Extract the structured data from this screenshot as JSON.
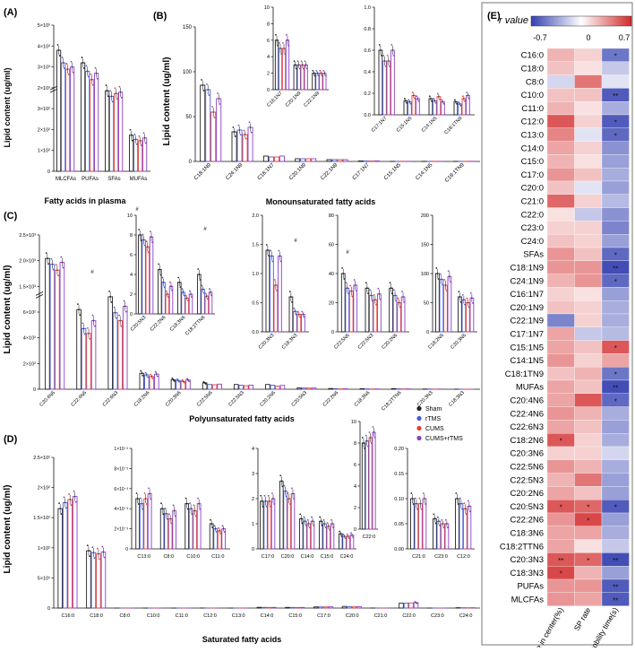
{
  "chart_data": [
    {
      "type": "bar",
      "panel": "(A)",
      "ylabel": "Lipid content (ug/ml)",
      "xlabel": "Fatty acids in plasma",
      "categories": [
        "MLCFAs",
        "PUFAs",
        "SFAs",
        "MUFAs"
      ],
      "groups": [
        "Sham",
        "rTMS",
        "CUMS",
        "CUMS+rTMS"
      ],
      "ytick_labels": [
        "0",
        "1×10²",
        "2×10²",
        "3×10²",
        "2×10³",
        "3×10³",
        "4×10³",
        "5×10³"
      ],
      "values": [
        [
          3800,
          3200,
          2900,
          3000
        ],
        [
          3200,
          2800,
          2400,
          2700
        ],
        [
          290,
          270,
          280,
          285
        ],
        [
          130,
          115,
          110,
          120
        ]
      ]
    },
    {
      "type": "bar",
      "panel": "(B)",
      "ylabel": "Lipid content (ug/ml)",
      "xlabel": "Monounsaturated fatty acids",
      "ylim": [
        0,
        150
      ],
      "ytick_labels": [
        "0",
        "50",
        "100",
        "150"
      ],
      "categories": [
        "C18:1N9",
        "C24:1N9",
        "C16:1N7",
        "C20:1N9",
        "C22:1N9",
        "C17:1N7",
        "C15:1N5",
        "C14:1N5",
        "C18:1TN9"
      ],
      "values": [
        [
          85,
          80,
          55,
          70
        ],
        [
          33,
          35,
          30,
          38
        ],
        [
          6,
          5,
          5,
          6
        ],
        [
          3,
          3,
          3,
          3
        ],
        [
          2,
          2,
          2,
          2
        ],
        [
          0.6,
          0.5,
          0.5,
          0.6
        ],
        [
          0.13,
          0.12,
          0.18,
          0.15
        ],
        [
          0.15,
          0.13,
          0.17,
          0.12
        ],
        [
          0.12,
          0.1,
          0.15,
          0.18
        ]
      ],
      "insets": [
        {
          "categories": [
            "C16:1N7",
            "C20:1N9",
            "C22:1N9"
          ],
          "ylim": [
            0,
            10
          ],
          "ytick_labels": [
            "0",
            "2",
            "4",
            "6",
            "8",
            "10"
          ]
        },
        {
          "categories": [
            "C17:1N7",
            "C15:1N5",
            "C14:1N5",
            "C18:1TN9"
          ],
          "ylim": [
            0,
            1
          ],
          "ytick_labels": [
            "0.0",
            "0.2",
            "0.4",
            "0.6",
            "0.8",
            "1.0"
          ]
        }
      ]
    },
    {
      "type": "bar",
      "panel": "(C)",
      "ylabel": "Lipid content (ug/ml)",
      "xlabel": "Polyunsaturated fatty acids",
      "ytick_labels": [
        "0",
        "2×10²",
        "4×10²",
        "6×10²",
        "1.5×10³",
        "2.0×10³",
        "2.5×10³"
      ],
      "categories": [
        "C20:4N6",
        "C22:4N6",
        "C22:6N3",
        "C18:2N6",
        "C20:3N6",
        "C22:5N6",
        "C22:5N3",
        "C20:2N6",
        "C20:5N3",
        "C22:2N6",
        "C18:3N6",
        "C18:2TTN6",
        "C20:3N3",
        "C18:3N3"
      ],
      "values": [
        [
          1900,
          1750,
          1600,
          1800
        ],
        [
          500,
          380,
          350,
          430
        ],
        [
          580,
          480,
          430,
          520
        ],
        [
          100,
          90,
          80,
          95
        ],
        [
          60,
          55,
          50,
          58
        ],
        [
          40,
          30,
          28,
          32
        ],
        [
          30,
          25,
          22,
          26
        ],
        [
          30,
          25,
          20,
          24
        ],
        [
          8,
          7.5,
          6.8,
          7.8
        ],
        [
          4.5,
          3.2,
          2,
          2.8
        ],
        [
          3.2,
          2.2,
          1.6,
          2
        ],
        [
          4,
          2.5,
          1.8,
          2.2
        ],
        [
          1.4,
          1.3,
          0.8,
          1.3
        ],
        [
          0.6,
          0.35,
          0.3,
          0.3
        ]
      ],
      "insets": [
        {
          "categories": [
            "C20:5N3",
            "C22:2N6",
            "C18:3N6",
            "C18:2TTN6"
          ],
          "ylim": [
            0,
            10
          ],
          "ytick_labels": [
            "0",
            "2",
            "4",
            "6",
            "8",
            "10"
          ]
        },
        {
          "categories": [
            "C20:3N3",
            "C18:3N3"
          ],
          "ylim": [
            0,
            2
          ],
          "ytick_labels": [
            "0.0",
            "0.5",
            "1.0",
            "1.5",
            "2.0"
          ]
        },
        {
          "categories": [
            "C22:5N6",
            "C22:5N3",
            "C20:2N6"
          ],
          "ylim": [
            0,
            80
          ],
          "ytick_labels": [
            "0",
            "20",
            "40",
            "60",
            "80"
          ]
        },
        {
          "categories": [
            "C18:2N6",
            "C20:3N6"
          ],
          "ylim": [
            0,
            200
          ],
          "ytick_labels": [
            "0",
            "50",
            "100",
            "150",
            "200"
          ]
        }
      ]
    },
    {
      "type": "bar",
      "panel": "(D)",
      "ylabel": "Lipid content (ug/ml)",
      "xlabel": "Saturated fatty acids",
      "ytick_labels": [
        "0",
        "5×10¹",
        "1×10²",
        "1.5×10²",
        "2×10²",
        "2.5×10²"
      ],
      "categories": [
        "C16:0",
        "C18:0",
        "C8:0",
        "C10:0",
        "C11:0",
        "C12:0",
        "C13:0",
        "C14:0",
        "C15:0",
        "C17:0",
        "C20:0",
        "C21:0",
        "C22:0",
        "C23:0",
        "C24:0"
      ],
      "values": [
        [
          165,
          175,
          180,
          185
        ],
        [
          95,
          92,
          90,
          93
        ],
        [
          0.004,
          0.0035,
          0.003,
          0.0038
        ],
        [
          0.0045,
          0.004,
          0.0038,
          0.0045
        ],
        [
          0.0025,
          0.002,
          0.0018,
          0.002
        ],
        [
          0.1,
          0.09,
          0.08,
          0.085
        ],
        [
          0.005,
          0.0045,
          0.005,
          0.0055
        ],
        [
          1.2,
          1.1,
          1,
          1.1
        ],
        [
          1.1,
          1,
          0.9,
          1
        ],
        [
          1.9,
          1.9,
          1.9,
          2
        ],
        [
          2.7,
          2.3,
          2,
          2.2
        ],
        [
          0.1,
          0.09,
          0.09,
          0.1
        ],
        [
          8,
          8.2,
          8.5,
          9
        ],
        [
          0.06,
          0.055,
          0.05,
          0.05
        ],
        [
          0.6,
          0.5,
          0.5,
          0.55
        ]
      ],
      "insets": [
        {
          "categories": [
            "C13:0",
            "C8:0",
            "C10:0",
            "C11:0"
          ],
          "ytick_labels": [
            "0",
            "2×10⁻³",
            "4×10⁻³",
            "6×10⁻³",
            "8×10⁻³",
            "1×10⁻²"
          ]
        },
        {
          "categories": [
            "C17:0",
            "C20:0",
            "C14:0",
            "C15:0",
            "C24:0"
          ],
          "ylim": [
            0,
            4
          ],
          "ytick_labels": [
            "0",
            "1",
            "2",
            "3",
            "4"
          ]
        },
        {
          "categories": [
            "C22:0"
          ],
          "ylim": [
            0,
            10
          ],
          "ytick_labels": [
            "0",
            "2",
            "4",
            "6",
            "8",
            "10"
          ]
        },
        {
          "categories": [
            "C21:0",
            "C23:0",
            "C12:0"
          ],
          "ylim": [
            0,
            0.2
          ],
          "ytick_labels": [
            "0.00",
            "0.05",
            "0.10",
            "0.15",
            "0.20"
          ]
        }
      ]
    },
    {
      "type": "heatmap",
      "panel": "(E)",
      "legend_title": "r value",
      "scale_labels": [
        "-0.7",
        "0",
        "0.7"
      ],
      "columns": [
        "Distance in center(%)",
        "SP rate",
        "Immobility time(s)"
      ],
      "rows": [
        "C16:0",
        "C18:0",
        "C8:0",
        "C10:0",
        "C11:0",
        "C12:0",
        "C13:0",
        "C14:0",
        "C15:0",
        "C17:0",
        "C20:0",
        "C21:0",
        "C22:0",
        "C23:0",
        "C24:0",
        "SFAs",
        "C18:1N9",
        "C24:1N9",
        "C16:1N7",
        "C20:1N9",
        "C22:1N9",
        "C17:1N7",
        "C15:1N5",
        "C14:1N5",
        "C18:1TN9",
        "MUFAs",
        "C20:4N6",
        "C22:4N6",
        "C22:6N3",
        "C18:2N6",
        "C20:3N6",
        "C22:5N6",
        "C22:5N3",
        "C20:2N6",
        "C20:5N3",
        "C22:2N6",
        "C18:3N6",
        "C18:2TTN6",
        "C20:3N3",
        "C18:3N3",
        "PUFAs",
        "MLCFAs"
      ],
      "values": [
        [
          0.25,
          0.15,
          -0.5
        ],
        [
          0.2,
          0.1,
          -0.2
        ],
        [
          -0.15,
          0.45,
          -0.1
        ],
        [
          0.2,
          0.2,
          -0.6
        ],
        [
          0.25,
          0.1,
          -0.3
        ],
        [
          0.55,
          0.15,
          -0.6
        ],
        [
          0.4,
          -0.1,
          -0.55
        ],
        [
          0.3,
          0.15,
          -0.4
        ],
        [
          0.25,
          0.1,
          -0.35
        ],
        [
          0.35,
          0.2,
          -0.3
        ],
        [
          0.2,
          -0.1,
          -0.35
        ],
        [
          0.5,
          0.15,
          -0.25
        ],
        [
          0.1,
          -0.2,
          -0.4
        ],
        [
          0.15,
          0.15,
          -0.45
        ],
        [
          0.2,
          0.15,
          -0.35
        ],
        [
          0.35,
          0.2,
          -0.55
        ],
        [
          0.35,
          0.35,
          -0.65
        ],
        [
          0.25,
          0.35,
          -0.55
        ],
        [
          0.15,
          0.1,
          -0.35
        ],
        [
          0.2,
          0.15,
          -0.3
        ],
        [
          -0.45,
          0.15,
          -0.3
        ],
        [
          0.3,
          -0.2,
          -0.25
        ],
        [
          0.3,
          0.2,
          0.55
        ],
        [
          0.35,
          0.15,
          0.3
        ],
        [
          0.2,
          0.25,
          -0.5
        ],
        [
          0.3,
          0.2,
          -0.65
        ],
        [
          0.3,
          0.55,
          -0.55
        ],
        [
          0.35,
          0.25,
          -0.3
        ],
        [
          0.3,
          0.2,
          -0.35
        ],
        [
          0.55,
          0.15,
          -0.3
        ],
        [
          0.15,
          0.15,
          -0.15
        ],
        [
          0.35,
          0.25,
          -0.3
        ],
        [
          0.25,
          0.45,
          -0.35
        ],
        [
          0.3,
          0.2,
          -0.35
        ],
        [
          0.55,
          0.5,
          -0.6
        ],
        [
          0.35,
          0.6,
          -0.35
        ],
        [
          0.3,
          0.3,
          -0.3
        ],
        [
          0.3,
          0.1,
          -0.2
        ],
        [
          0.55,
          0.5,
          -0.65
        ],
        [
          0.6,
          0.25,
          -0.35
        ],
        [
          0.35,
          0.35,
          -0.6
        ],
        [
          0.35,
          0.3,
          -0.6
        ]
      ],
      "stars": [
        [
          "",
          "",
          "*"
        ],
        [
          "",
          "",
          ""
        ],
        [
          "",
          "",
          ""
        ],
        [
          "",
          "",
          "**"
        ],
        [
          "",
          "",
          ""
        ],
        [
          "",
          "",
          "*"
        ],
        [
          "",
          "",
          "*"
        ],
        [
          "",
          "",
          ""
        ],
        [
          "",
          "",
          ""
        ],
        [
          "",
          "",
          ""
        ],
        [
          "",
          "",
          ""
        ],
        [
          "",
          "",
          ""
        ],
        [
          "",
          "",
          ""
        ],
        [
          "",
          "",
          ""
        ],
        [
          "",
          "",
          ""
        ],
        [
          "",
          "",
          "*"
        ],
        [
          "",
          "",
          "**"
        ],
        [
          "",
          "",
          "*"
        ],
        [
          "",
          "",
          ""
        ],
        [
          "",
          "",
          ""
        ],
        [
          "",
          "",
          ""
        ],
        [
          "",
          "",
          ""
        ],
        [
          "",
          "",
          "*"
        ],
        [
          "",
          "",
          ""
        ],
        [
          "",
          "",
          "*"
        ],
        [
          "",
          "",
          "**"
        ],
        [
          "",
          "",
          "*"
        ],
        [
          "",
          "",
          ""
        ],
        [
          "",
          "",
          ""
        ],
        [
          "*",
          "",
          ""
        ],
        [
          "",
          "",
          ""
        ],
        [
          "",
          "",
          ""
        ],
        [
          "",
          "",
          ""
        ],
        [
          "",
          "",
          ""
        ],
        [
          "*",
          "*",
          "*"
        ],
        [
          "",
          "*",
          ""
        ],
        [
          "",
          "",
          ""
        ],
        [
          "",
          "",
          ""
        ],
        [
          "**",
          "*",
          "**"
        ],
        [
          "*",
          "",
          ""
        ],
        [
          "",
          "",
          "**"
        ],
        [
          "",
          "",
          "**"
        ]
      ]
    }
  ],
  "legend": {
    "items": [
      {
        "name": "Sham",
        "color": "#222222"
      },
      {
        "name": "rTMS",
        "color": "#4a5ad8"
      },
      {
        "name": "CUMS",
        "color": "#e0403a"
      },
      {
        "name": "CUMS+rTMS",
        "color": "#8a3fc6"
      }
    ]
  },
  "sig_marks": {
    "star": "*",
    "hash": "#"
  }
}
